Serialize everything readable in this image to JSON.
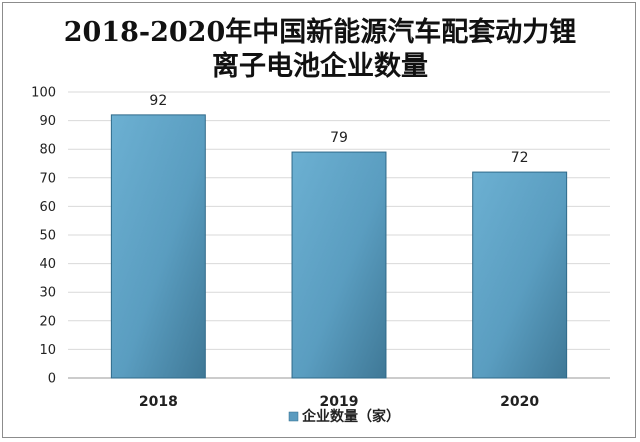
{
  "chart_data": {
    "type": "bar",
    "title_line1": "2018-2020年中国新能源汽车配套动力锂",
    "title_line2": "离子电池企业数量",
    "categories": [
      "2018",
      "2019",
      "2020"
    ],
    "series": [
      {
        "name": "企业数量（家）",
        "values": [
          92,
          79,
          72
        ]
      }
    ],
    "ylim": [
      0,
      100
    ],
    "yticks": [
      0,
      10,
      20,
      30,
      40,
      50,
      60,
      70,
      80,
      90,
      100
    ],
    "grid": true,
    "legend": "bottom",
    "bar_color": "#5b9bbf"
  }
}
